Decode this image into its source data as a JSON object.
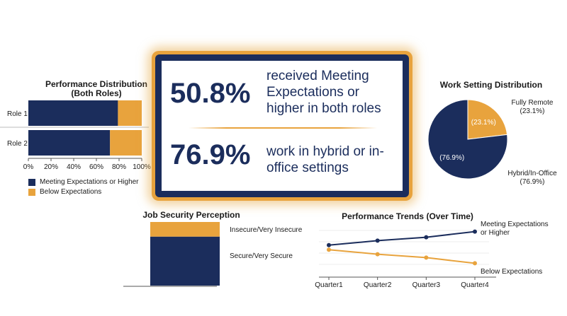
{
  "colors": {
    "navy": "#1b2d5c",
    "orange": "#e8a33d"
  },
  "callout": {
    "stat1_value": "50.8%",
    "stat1_text_line1": "received Meeting",
    "stat1_text_line2": "Expectations or",
    "stat1_text_line3": "higher in both roles",
    "stat2_value": "76.9%",
    "stat2_text_line1": "work in hybrid or in-",
    "stat2_text_line2": "office settings"
  },
  "chart_data": [
    {
      "type": "bar",
      "orientation": "horizontal",
      "stacked": true,
      "title_line1": "Performance Distribution",
      "title_line2": "(Both Roles)",
      "categories": [
        "Role 1",
        "Role 2"
      ],
      "series": [
        {
          "name": "Meeting Expectations or Higher",
          "values": [
            79,
            72
          ],
          "color": "#1b2d5c"
        },
        {
          "name": "Below Expectations",
          "values": [
            21,
            28
          ],
          "color": "#e8a33d"
        }
      ],
      "xlim": [
        0,
        100
      ],
      "xticks": [
        "0%",
        "20%",
        "40%",
        "60%",
        "80%",
        "100%"
      ],
      "legend_position": "bottom"
    },
    {
      "type": "pie",
      "title": "Work Setting Distribution",
      "slices": [
        {
          "name": "Fully Remote",
          "value": 23.1,
          "label": "(23.1%)",
          "color": "#e8a33d"
        },
        {
          "name": "Hybrid/In-Office",
          "value": 76.9,
          "label": "(76.9%)",
          "color": "#1b2d5c"
        }
      ],
      "outer_labels": [
        {
          "name": "Fully Remote",
          "value": "(23.1%)"
        },
        {
          "name": "Hybrid/In-Office",
          "value": "(76.9%)"
        }
      ]
    },
    {
      "type": "bar",
      "stacked": true,
      "title": "Job Security Perception",
      "series": [
        {
          "name": "Secure/Very Secure",
          "value": 77,
          "color": "#1b2d5c"
        },
        {
          "name": "Insecure/Very Insecure",
          "value": 23,
          "color": "#e8a33d"
        }
      ]
    },
    {
      "type": "line",
      "title": "Performance Trends (Over Time)",
      "categories": [
        "Quarter1",
        "Quarter2",
        "Quarter3",
        "Quarter4"
      ],
      "series": [
        {
          "name_line1": "Meeting Expectations",
          "name_line2": "or Higher",
          "values": [
            54,
            62,
            68,
            78
          ],
          "color": "#1b2d5c"
        },
        {
          "name": "Below Expectations",
          "values": [
            46,
            38,
            32,
            22
          ],
          "color": "#e8a33d"
        }
      ],
      "ylim": [
        0,
        100
      ]
    }
  ]
}
